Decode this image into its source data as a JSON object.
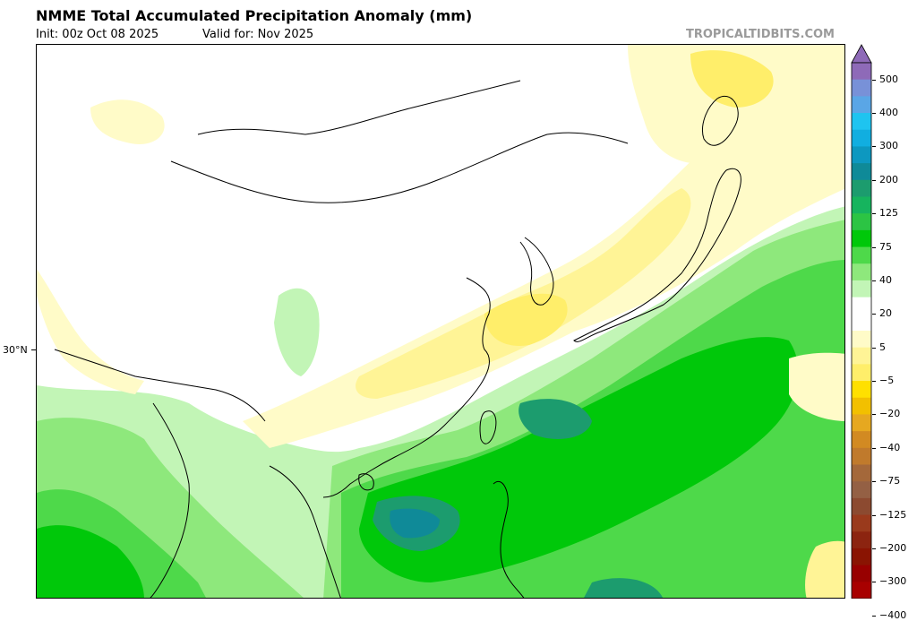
{
  "header": {
    "title": "NMME Total Accumulated Precipitation Anomaly (mm)",
    "init": "Init: 00z Oct 08 2025",
    "valid": "Valid for: Nov 2025",
    "brand": "TROPICALTIDBITS.COM"
  },
  "map": {
    "latitude_label": "30°N",
    "coastline_color": "#000000"
  },
  "colorbar": {
    "labels": [
      "500",
      "400",
      "300",
      "200",
      "125",
      "75",
      "40",
      "20",
      "5",
      "−5",
      "−20",
      "−40",
      "−75",
      "−125",
      "−200",
      "−300",
      "−400"
    ],
    "colors_top_to_bottom": [
      "#8e6ab8",
      "#7891d8",
      "#5aa6e6",
      "#1ec4f0",
      "#11aee0",
      "#0d98c0",
      "#0f8a98",
      "#1c9c6e",
      "#16b45e",
      "#2cc444",
      "#00c80a",
      "#4ed94a",
      "#8ee87c",
      "#c2f5b6",
      "#ffffff",
      "#ffffff",
      "#fffbc8",
      "#fff496",
      "#ffee6a",
      "#ffe000",
      "#f2c000",
      "#e6a820",
      "#d28a22",
      "#c07a2c",
      "#a4683a",
      "#946044",
      "#8c4a30",
      "#9a3a1c",
      "#8c2410",
      "#8a1402",
      "#980000",
      "#a80000"
    ]
  }
}
